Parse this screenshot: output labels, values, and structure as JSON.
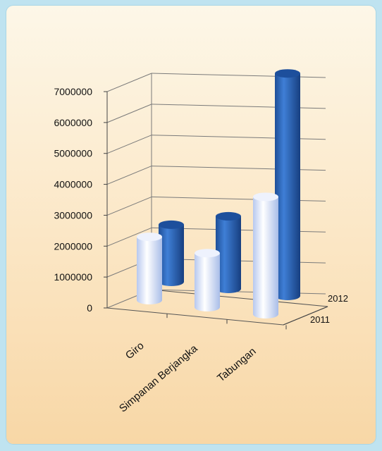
{
  "chart_data": {
    "type": "bar",
    "style": "3d-cylinder",
    "categories": [
      "Giro",
      "Simpanan Berjangka",
      "Tabungan"
    ],
    "series": [
      {
        "name": "2011",
        "values": [
          2050000,
          1750000,
          3800000
        ]
      },
      {
        "name": "2012",
        "values": [
          1850000,
          2350000,
          7200000
        ]
      }
    ],
    "ylim": [
      0,
      7000000
    ],
    "yticks": [
      "0",
      "1000000",
      "2000000",
      "3000000",
      "4000000",
      "5000000",
      "6000000",
      "7000000"
    ],
    "grid": true,
    "colors": {
      "series_2011": "#dfe8fb",
      "series_2012": "#2a63b4",
      "panel_top": "#fdf7e8",
      "panel_bottom": "#f8d7a6",
      "frame": "#bfe3f0"
    }
  }
}
